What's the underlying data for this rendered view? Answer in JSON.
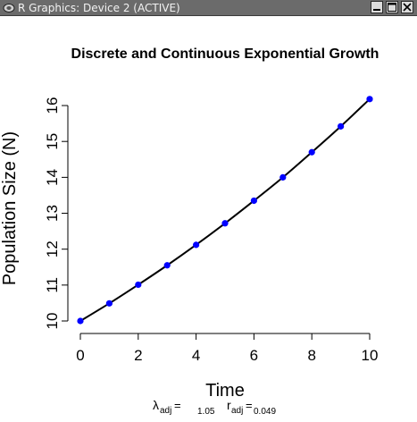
{
  "window": {
    "title": "R Graphics: Device 2 (ACTIVE)",
    "icons": [
      "r-device-icon",
      "minimize-icon",
      "maximize-icon",
      "close-icon"
    ]
  },
  "chart_data": {
    "type": "scatter",
    "title": "Discrete and Continuous Exponential Growth",
    "xlabel": "Time",
    "ylabel": "Population Size (N)",
    "xlim": [
      0,
      10
    ],
    "ylim": [
      10,
      16.3
    ],
    "xticks": [
      0,
      2,
      4,
      6,
      8,
      10
    ],
    "yticks": [
      10,
      11,
      12,
      13,
      14,
      15,
      16
    ],
    "grid": false,
    "series": [
      {
        "kind": "points",
        "color": "#0000ff",
        "x": [
          0,
          1,
          2,
          3,
          4,
          5,
          6,
          7,
          8,
          9,
          10
        ],
        "y": [
          10.0,
          10.49,
          11.01,
          11.55,
          12.12,
          12.72,
          13.35,
          14.0,
          14.7,
          15.42,
          16.18
        ]
      },
      {
        "kind": "curve",
        "color": "#000000",
        "x": [
          0,
          1,
          2,
          3,
          4,
          5,
          6,
          7,
          8,
          9,
          10
        ],
        "y": [
          10.0,
          10.49,
          11.01,
          11.55,
          12.12,
          12.72,
          13.35,
          14.0,
          14.7,
          15.42,
          16.18
        ]
      }
    ],
    "annotation": {
      "lambda_symbol": "λ",
      "lambda_sub": "adj",
      "lambda_eq": "=",
      "lambda_value": "1.05",
      "r_symbol": "r",
      "r_sub": "adj",
      "r_eq": "=",
      "r_value": "0.049"
    }
  }
}
